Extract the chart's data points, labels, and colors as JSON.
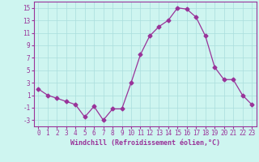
{
  "x": [
    0,
    1,
    2,
    3,
    4,
    5,
    6,
    7,
    8,
    9,
    10,
    11,
    12,
    13,
    14,
    15,
    16,
    17,
    18,
    19,
    20,
    21,
    22,
    23
  ],
  "y": [
    2,
    1,
    0.5,
    0,
    -0.5,
    -2.5,
    -0.8,
    -3,
    -1.2,
    -1.2,
    3,
    7.5,
    10.5,
    12,
    13,
    15,
    14.8,
    13.5,
    10.5,
    5.5,
    3.5,
    3.5,
    1,
    -0.5
  ],
  "line_color": "#993399",
  "marker": "D",
  "marker_size": 2.5,
  "bg_color": "#cef5f0",
  "grid_color": "#aadddd",
  "xlabel": "Windchill (Refroidissement éolien,°C)",
  "xlim": [
    -0.5,
    23.5
  ],
  "ylim": [
    -4,
    16
  ],
  "yticks": [
    -3,
    -1,
    1,
    3,
    5,
    7,
    9,
    11,
    13,
    15
  ],
  "xticks": [
    0,
    1,
    2,
    3,
    4,
    5,
    6,
    7,
    8,
    9,
    10,
    11,
    12,
    13,
    14,
    15,
    16,
    17,
    18,
    19,
    20,
    21,
    22,
    23
  ],
  "tick_color": "#993399",
  "label_color": "#993399",
  "spine_color": "#993399",
  "tick_fontsize": 5.5,
  "xlabel_fontsize": 6.0
}
